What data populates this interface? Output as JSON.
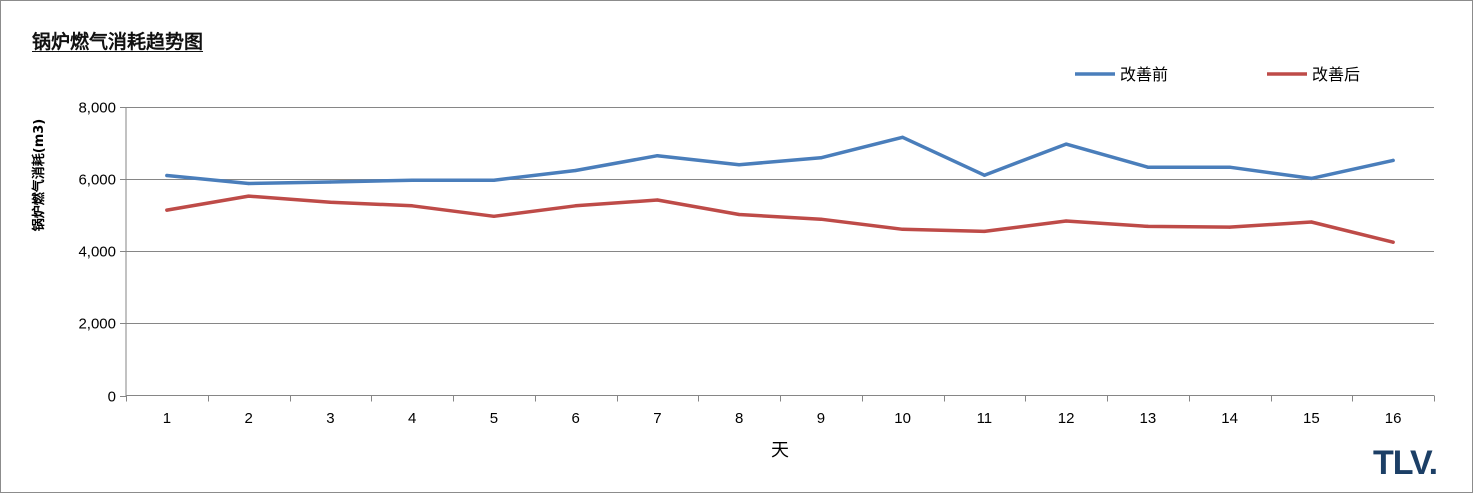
{
  "logo_text": "TLV.",
  "colors": {
    "series_before": "#4a7ebb",
    "series_after": "#be4b48",
    "grid": "#868686",
    "logo": "#1c3f66"
  },
  "chart_data": {
    "type": "line",
    "title": "锅炉燃气消耗趋势图",
    "xlabel": "天",
    "ylabel": "锅炉燃气消耗(m3)",
    "x": [
      1,
      2,
      3,
      4,
      5,
      6,
      7,
      8,
      9,
      10,
      11,
      12,
      13,
      14,
      15,
      16
    ],
    "ylim": [
      0,
      8000
    ],
    "yticks": [
      0,
      2000,
      4000,
      6000,
      8000
    ],
    "ytick_labels": [
      "0",
      "2,000",
      "4,000",
      "6,000",
      "8,000"
    ],
    "grid": true,
    "legend_position": "top-right",
    "series": [
      {
        "name": "改善前",
        "color": "#4a7ebb",
        "values": [
          6100,
          5880,
          5920,
          5970,
          5970,
          6240,
          6650,
          6400,
          6590,
          7160,
          6110,
          6970,
          6330,
          6330,
          6020,
          6520
        ]
      },
      {
        "name": "改善后",
        "color": "#be4b48",
        "values": [
          5140,
          5530,
          5360,
          5260,
          4970,
          5260,
          5420,
          5020,
          4890,
          4610,
          4550,
          4840,
          4690,
          4670,
          4810,
          4250
        ]
      }
    ]
  }
}
